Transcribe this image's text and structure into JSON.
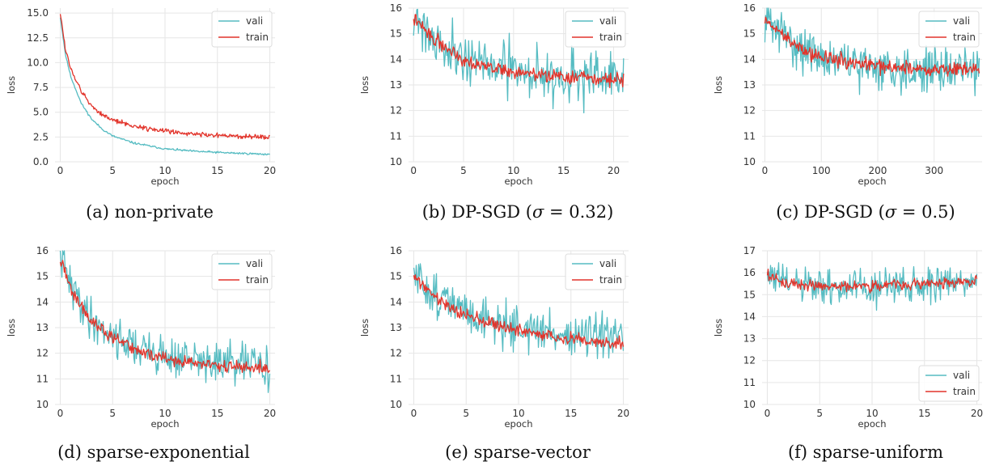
{
  "chart_data": [
    {
      "id": "a",
      "type": "line",
      "caption": "(a) non-private",
      "xlabel": "epoch",
      "ylabel": "loss",
      "xlim": [
        -0.5,
        20.5
      ],
      "ylim": [
        0,
        15.5
      ],
      "xticks": [
        0,
        5,
        10,
        15,
        20
      ],
      "xtick_labels": [
        "0",
        "5",
        "10",
        "15",
        "20"
      ],
      "yticks": [
        0,
        2.5,
        5,
        7.5,
        10,
        12.5,
        15
      ],
      "ytick_labels": [
        "0.0",
        "2.5",
        "5.0",
        "7.5",
        "10.0",
        "12.5",
        "15.0"
      ],
      "legend": "top-right",
      "grid": true,
      "series": [
        {
          "name": "vali",
          "color": "#56bcc2",
          "x_range": [
            0,
            20
          ],
          "points": 300,
          "trend": [
            [
              0,
              14.6
            ],
            [
              0.5,
              10.8
            ],
            [
              1,
              8.6
            ],
            [
              2,
              5.9
            ],
            [
              3,
              4.3
            ],
            [
              4,
              3.3
            ],
            [
              5,
              2.6
            ],
            [
              7,
              1.9
            ],
            [
              10,
              1.3
            ],
            [
              13,
              1.05
            ],
            [
              16,
              0.9
            ],
            [
              20,
              0.75
            ]
          ],
          "noise": 0.05,
          "seed": 11
        },
        {
          "name": "train",
          "color": "#e2342b",
          "x_range": [
            0,
            20
          ],
          "points": 300,
          "trend": [
            [
              0,
              15.1
            ],
            [
              0.5,
              11.3
            ],
            [
              1,
              9.4
            ],
            [
              2,
              7.1
            ],
            [
              3,
              5.6
            ],
            [
              4,
              4.8
            ],
            [
              5,
              4.2
            ],
            [
              7,
              3.6
            ],
            [
              10,
              3.1
            ],
            [
              13,
              2.8
            ],
            [
              16,
              2.6
            ],
            [
              20,
              2.45
            ]
          ],
          "noise": 0.12,
          "seed": 12
        }
      ]
    },
    {
      "id": "b",
      "type": "line",
      "caption_text": "(b) DP-SGD (",
      "caption_sigma": "σ",
      "caption_value": " = 0.32)",
      "xlabel": "epoch",
      "ylabel": "loss",
      "xlim": [
        -0.5,
        21.5
      ],
      "ylim": [
        10,
        16
      ],
      "xticks": [
        0,
        5,
        10,
        15,
        20
      ],
      "xtick_labels": [
        "0",
        "5",
        "10",
        "15",
        "20"
      ],
      "yticks": [
        10,
        11,
        12,
        13,
        14,
        15,
        16
      ],
      "ytick_labels": [
        "10",
        "11",
        "12",
        "13",
        "14",
        "15",
        "16"
      ],
      "legend": "top-right",
      "grid": true,
      "series": [
        {
          "name": "vali",
          "color": "#56bcc2",
          "x_range": [
            0,
            21
          ],
          "points": 260,
          "trend": [
            [
              0,
              15.8
            ],
            [
              2,
              14.8
            ],
            [
              5,
              14.1
            ],
            [
              8,
              13.7
            ],
            [
              11,
              13.5
            ],
            [
              15,
              13.3
            ],
            [
              21,
              13.2
            ]
          ],
          "noise": 0.5,
          "seed": 21
        },
        {
          "name": "train",
          "color": "#e2342b",
          "x_range": [
            0,
            21
          ],
          "points": 260,
          "trend": [
            [
              0,
              15.6
            ],
            [
              2,
              14.8
            ],
            [
              5,
              14.0
            ],
            [
              8,
              13.65
            ],
            [
              11,
              13.45
            ],
            [
              15,
              13.3
            ],
            [
              21,
              13.2
            ]
          ],
          "noise": 0.13,
          "seed": 22
        }
      ]
    },
    {
      "id": "c",
      "type": "line",
      "caption_text": "(c) DP-SGD (",
      "caption_sigma": "σ",
      "caption_value": " = 0.5)",
      "xlabel": "epoch",
      "ylabel": "loss",
      "xlim": [
        -5,
        385
      ],
      "ylim": [
        10,
        16
      ],
      "xticks": [
        0,
        100,
        200,
        300
      ],
      "xtick_labels": [
        "0",
        "100",
        "200",
        "300"
      ],
      "yticks": [
        10,
        11,
        12,
        13,
        14,
        15,
        16
      ],
      "ytick_labels": [
        "10",
        "11",
        "12",
        "13",
        "14",
        "15",
        "16"
      ],
      "legend": "top-right",
      "grid": true,
      "series": [
        {
          "name": "vali",
          "color": "#56bcc2",
          "x_range": [
            0,
            380
          ],
          "points": 300,
          "trend": [
            [
              0,
              15.6
            ],
            [
              30,
              15.0
            ],
            [
              80,
              14.2
            ],
            [
              150,
              13.8
            ],
            [
              250,
              13.6
            ],
            [
              380,
              13.6
            ]
          ],
          "noise": 0.42,
          "seed": 31
        },
        {
          "name": "train",
          "color": "#e2342b",
          "x_range": [
            0,
            380
          ],
          "points": 300,
          "trend": [
            [
              0,
              15.5
            ],
            [
              30,
              15.0
            ],
            [
              80,
              14.2
            ],
            [
              150,
              13.85
            ],
            [
              250,
              13.65
            ],
            [
              380,
              13.6
            ]
          ],
          "noise": 0.14,
          "seed": 32
        }
      ]
    },
    {
      "id": "d",
      "type": "line",
      "caption": "(d) sparse-exponential",
      "xlabel": "epoch",
      "ylabel": "loss",
      "xlim": [
        -0.5,
        20.5
      ],
      "ylim": [
        10,
        16
      ],
      "xticks": [
        0,
        5,
        10,
        15,
        20
      ],
      "xtick_labels": [
        "0",
        "5",
        "10",
        "15",
        "20"
      ],
      "yticks": [
        10,
        11,
        12,
        13,
        14,
        15,
        16
      ],
      "ytick_labels": [
        "10",
        "11",
        "12",
        "13",
        "14",
        "15",
        "16"
      ],
      "legend": "top-right",
      "grid": true,
      "series": [
        {
          "name": "vali",
          "color": "#56bcc2",
          "x_range": [
            0,
            20
          ],
          "points": 260,
          "trend": [
            [
              0,
              15.9
            ],
            [
              1,
              14.6
            ],
            [
              3,
              13.3
            ],
            [
              5,
              12.7
            ],
            [
              8,
              12.1
            ],
            [
              11,
              11.8
            ],
            [
              15,
              11.6
            ],
            [
              20,
              11.5
            ]
          ],
          "noise": 0.4,
          "seed": 41
        },
        {
          "name": "train",
          "color": "#e2342b",
          "x_range": [
            0,
            20
          ],
          "points": 260,
          "trend": [
            [
              0,
              15.7
            ],
            [
              1,
              14.5
            ],
            [
              3,
              13.2
            ],
            [
              5,
              12.6
            ],
            [
              8,
              12.0
            ],
            [
              11,
              11.7
            ],
            [
              15,
              11.5
            ],
            [
              20,
              11.4
            ]
          ],
          "noise": 0.12,
          "seed": 42
        }
      ]
    },
    {
      "id": "e",
      "type": "line",
      "caption": "(e) sparse-vector",
      "xlabel": "epoch",
      "ylabel": "loss",
      "xlim": [
        -0.5,
        20.5
      ],
      "ylim": [
        10,
        16
      ],
      "xticks": [
        0,
        5,
        10,
        15,
        20
      ],
      "xtick_labels": [
        "0",
        "5",
        "10",
        "15",
        "20"
      ],
      "yticks": [
        10,
        11,
        12,
        13,
        14,
        15,
        16
      ],
      "ytick_labels": [
        "10",
        "11",
        "12",
        "13",
        "14",
        "15",
        "16"
      ],
      "legend": "top-right",
      "grid": true,
      "series": [
        {
          "name": "vali",
          "color": "#56bcc2",
          "x_range": [
            0,
            20
          ],
          "points": 260,
          "trend": [
            [
              0,
              15.0
            ],
            [
              2,
              14.3
            ],
            [
              5,
              13.6
            ],
            [
              8,
              13.2
            ],
            [
              11,
              12.9
            ],
            [
              15,
              12.7
            ],
            [
              20,
              12.5
            ]
          ],
          "noise": 0.42,
          "seed": 51
        },
        {
          "name": "train",
          "color": "#e2342b",
          "x_range": [
            0,
            20
          ],
          "points": 260,
          "trend": [
            [
              0,
              15.0
            ],
            [
              2,
              14.2
            ],
            [
              5,
              13.5
            ],
            [
              8,
              13.1
            ],
            [
              11,
              12.8
            ],
            [
              15,
              12.55
            ],
            [
              20,
              12.35
            ]
          ],
          "noise": 0.12,
          "seed": 52
        }
      ]
    },
    {
      "id": "f",
      "type": "line",
      "caption": "(f) sparse-uniform",
      "xlabel": "epoch",
      "ylabel": "loss",
      "xlim": [
        -0.5,
        20.5
      ],
      "ylim": [
        10,
        17
      ],
      "xticks": [
        0,
        5,
        10,
        15,
        20
      ],
      "xtick_labels": [
        "0",
        "5",
        "10",
        "15",
        "20"
      ],
      "yticks": [
        10,
        11,
        12,
        13,
        14,
        15,
        16,
        17
      ],
      "ytick_labels": [
        "10",
        "11",
        "12",
        "13",
        "14",
        "15",
        "16",
        "17"
      ],
      "legend": "bottom-right",
      "grid": true,
      "series": [
        {
          "name": "vali",
          "color": "#56bcc2",
          "x_range": [
            0,
            20
          ],
          "points": 260,
          "trend": [
            [
              0,
              15.9
            ],
            [
              2,
              15.5
            ],
            [
              5,
              15.3
            ],
            [
              10,
              15.3
            ],
            [
              15,
              15.5
            ],
            [
              20,
              15.6
            ]
          ],
          "noise": 0.42,
          "seed": 61
        },
        {
          "name": "train",
          "color": "#e2342b",
          "x_range": [
            0,
            20
          ],
          "points": 260,
          "trend": [
            [
              0,
              15.9
            ],
            [
              2,
              15.5
            ],
            [
              5,
              15.4
            ],
            [
              10,
              15.4
            ],
            [
              15,
              15.5
            ],
            [
              20,
              15.6
            ]
          ],
          "noise": 0.12,
          "seed": 62
        }
      ]
    }
  ]
}
